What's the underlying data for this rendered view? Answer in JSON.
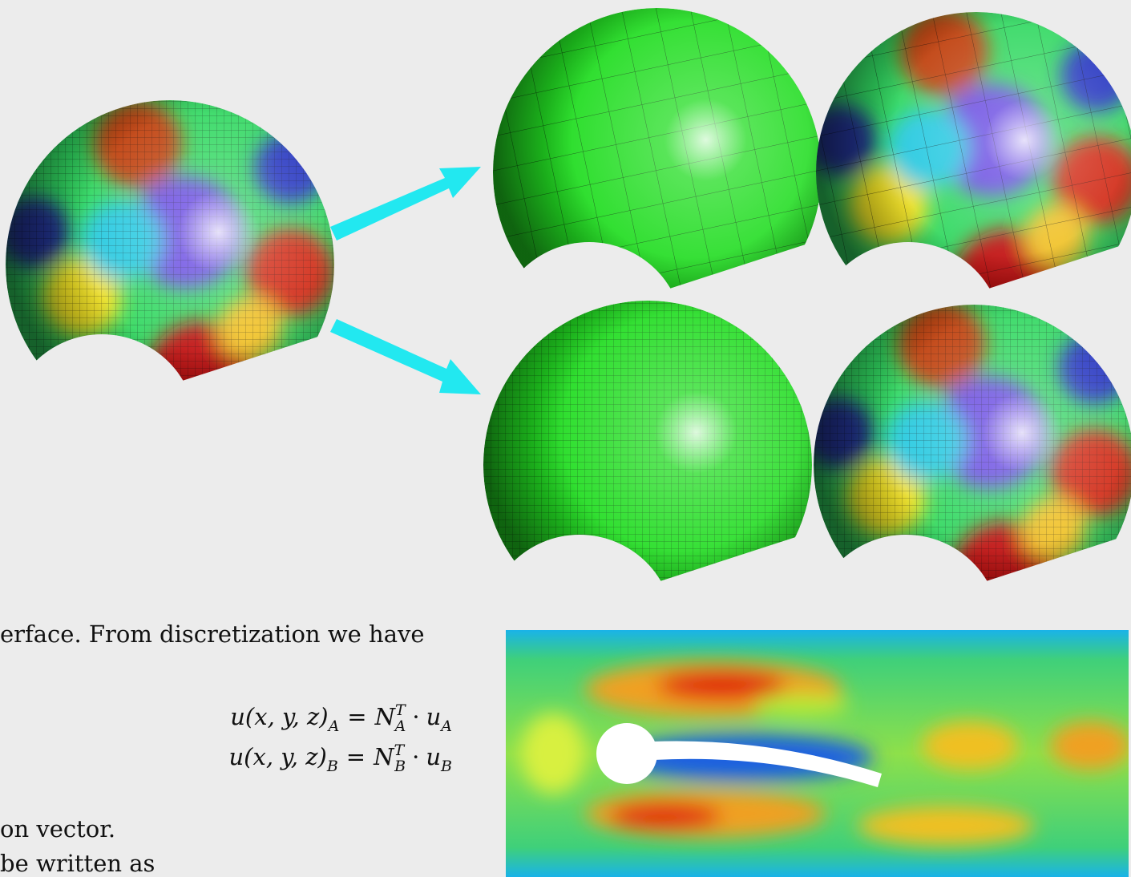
{
  "text": {
    "line1": "erface. From discretization we have",
    "line2": "on vector.",
    "line3": "be written as"
  },
  "equations": [
    {
      "lhs": "u(x, y, z)",
      "lhs_sub": "A",
      "eq": "=",
      "n": "N",
      "n_sup": "T",
      "n_sub": "A",
      "dot": "·",
      "u": "u",
      "u_sub": "A"
    },
    {
      "lhs": "u(x, y, z)",
      "lhs_sub": "B",
      "eq": "=",
      "n": "N",
      "n_sup": "T",
      "n_sub": "B",
      "dot": "·",
      "u": "u",
      "u_sub": "B"
    }
  ]
}
